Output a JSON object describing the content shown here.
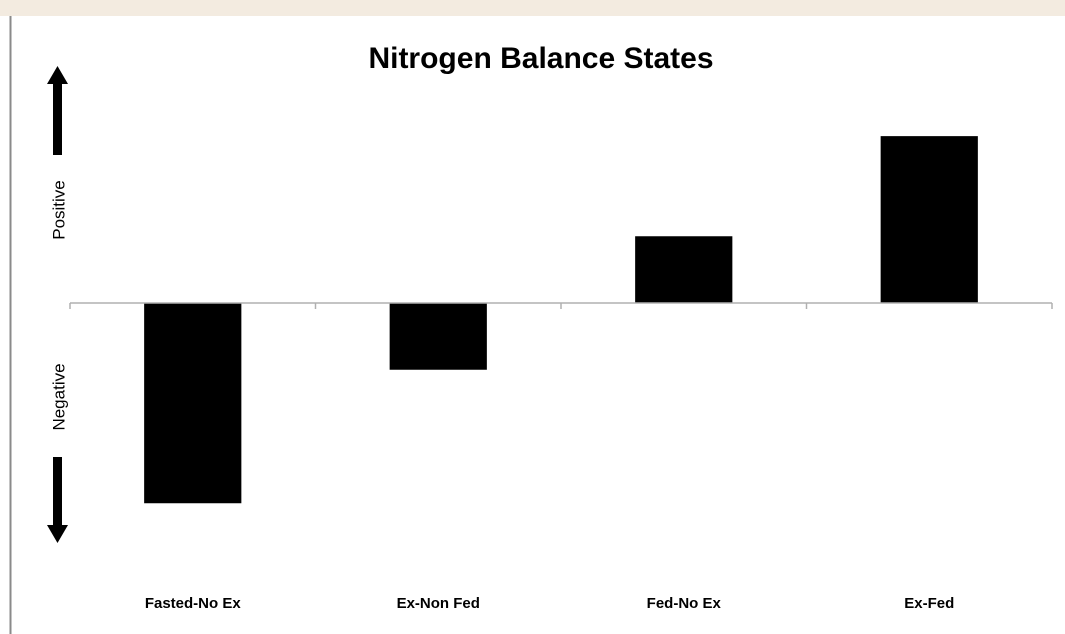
{
  "chart_data": {
    "type": "bar",
    "title": "Nitrogen Balance States",
    "categories": [
      "Fasted-No Ex",
      "Ex-Non Fed",
      "Fed-No Ex",
      "Ex-Fed"
    ],
    "values": [
      -3,
      -1,
      1,
      2.5
    ],
    "color": "#000000",
    "ylim": [
      -4,
      4
    ],
    "axis_labels": {
      "positive": "Positive",
      "negative": "Negative"
    }
  }
}
